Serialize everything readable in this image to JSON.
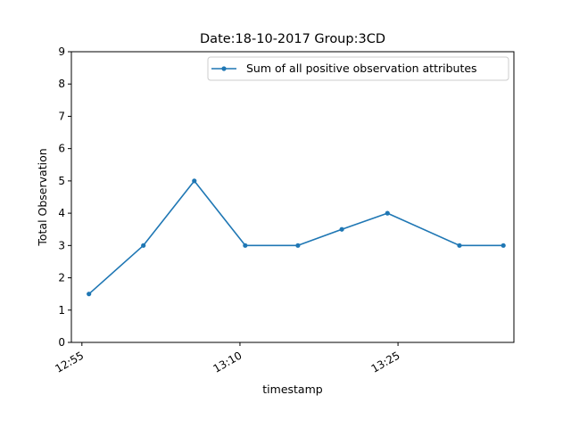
{
  "chart_data": {
    "type": "line",
    "title": "Date:18-10-2017  Group:3CD",
    "xlabel": "timestamp",
    "ylabel": "Total Observation",
    "ylim": [
      0,
      9
    ],
    "yticks": [
      0,
      1,
      2,
      3,
      4,
      5,
      6,
      7,
      8,
      9
    ],
    "xlim": [
      "12:54",
      "13:36"
    ],
    "xticks": [
      "12:55",
      "13:10",
      "13:25"
    ],
    "grid": false,
    "legend_position": "top-right",
    "series": [
      {
        "name": "Sum of all positive observation attributes",
        "color": "#1f77b4",
        "marker": "point",
        "x": [
          "12:55:40",
          "13:00:50",
          "13:05:40",
          "13:10:30",
          "13:15:30",
          "13:19:40",
          "13:24:00",
          "13:30:50",
          "13:35:00"
        ],
        "y": [
          1.5,
          3,
          5,
          3,
          3,
          3.5,
          4,
          3,
          3
        ]
      }
    ]
  }
}
